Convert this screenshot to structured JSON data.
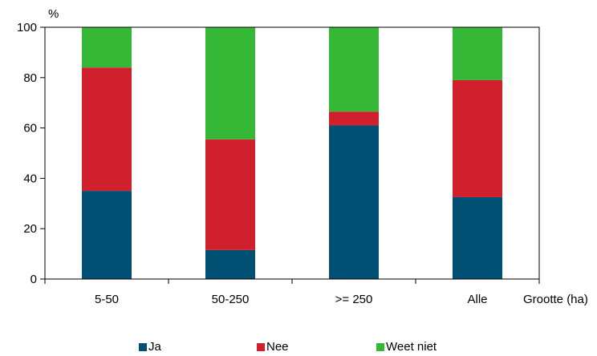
{
  "chart_data": {
    "type": "bar",
    "stacked": true,
    "categories": [
      "5-50",
      "50-250",
      ">= 250",
      "Alle"
    ],
    "series": [
      {
        "name": "Ja",
        "color": "#005073",
        "values": [
          35,
          11.5,
          61,
          32.5
        ]
      },
      {
        "name": "Nee",
        "color": "#d0202e",
        "values": [
          49,
          44,
          5.5,
          46.5
        ]
      },
      {
        "name": "Weet niet",
        "color": "#36b837",
        "values": [
          16,
          44.5,
          33.5,
          21
        ]
      }
    ],
    "ylabel": "%",
    "xlabel": "Grootte (ha)",
    "ylim": [
      0,
      100
    ],
    "yticks": [
      0,
      20,
      40,
      60,
      80,
      100
    ],
    "grid": false,
    "legend_position": "bottom"
  }
}
